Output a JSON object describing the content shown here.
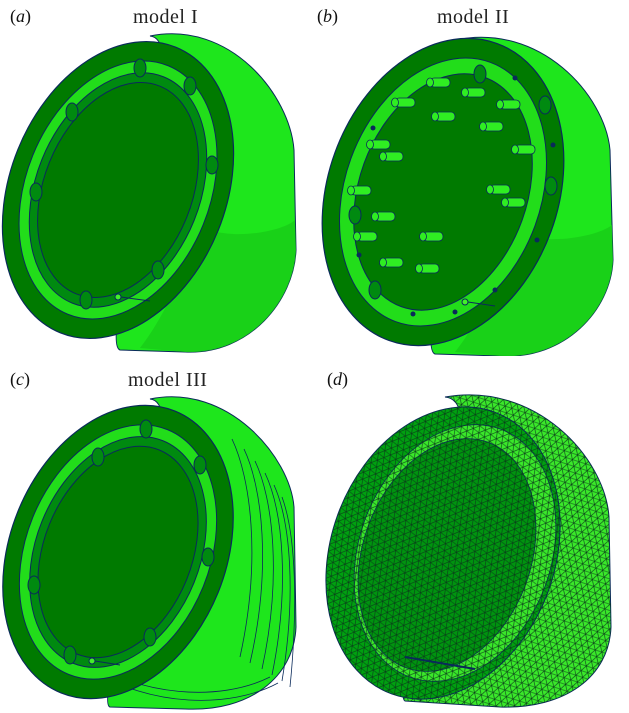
{
  "panels": [
    {
      "letter": "a",
      "title": "model I"
    },
    {
      "letter": "b",
      "title": "model II"
    },
    {
      "letter": "c",
      "title": "model III"
    },
    {
      "letter": "d",
      "title": ""
    }
  ],
  "colors": {
    "dark_green": "#007a00",
    "face_green": "#00941a",
    "bright_green": "#22e61a",
    "light_green": "#44f02a",
    "outline": "#0a2a5a"
  }
}
